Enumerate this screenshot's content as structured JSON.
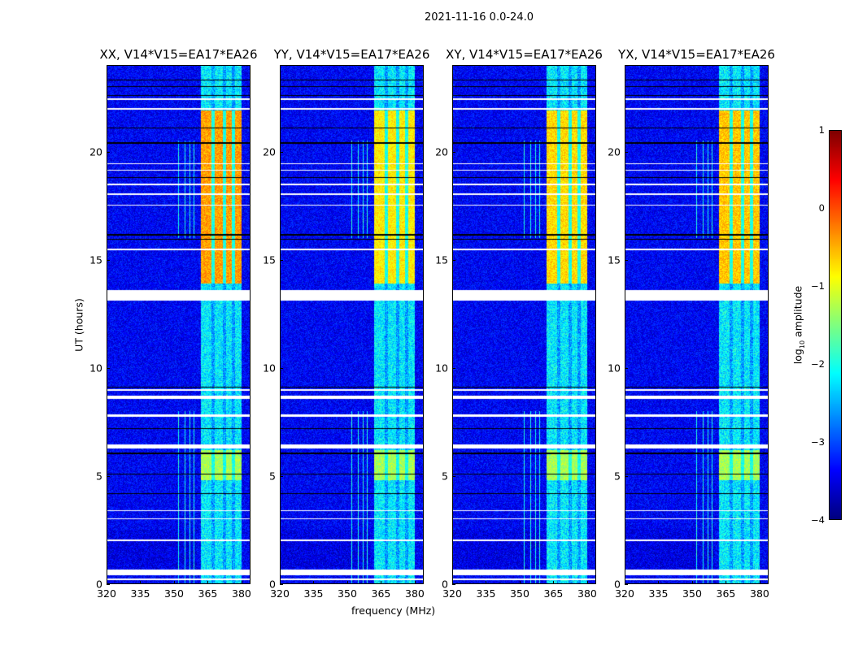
{
  "suptitle": "2021-11-16 0.0-24.0",
  "chart_data": {
    "type": "heatmap",
    "xlabel": "frequency (MHz)",
    "ylabel": "UT (hours)",
    "xlim": [
      320,
      384
    ],
    "ylim": [
      0,
      24
    ],
    "xticks": [
      "320",
      "335",
      "350",
      "365",
      "380"
    ],
    "xtick_values": [
      320,
      335,
      350,
      365,
      380
    ],
    "yticks": [
      "0",
      "5",
      "10",
      "15",
      "20"
    ],
    "ytick_values": [
      0,
      5,
      10,
      15,
      20
    ],
    "panels": [
      {
        "title": "XX, V14*V15=EA17*EA26",
        "bright_level": -0.4
      },
      {
        "title": "YY, V14*V15=EA17*EA26",
        "bright_level": -0.8
      },
      {
        "title": "XY, V14*V15=EA17*EA26",
        "bright_level": -0.7
      },
      {
        "title": "YX, V14*V15=EA17*EA26",
        "bright_level": -0.6
      }
    ],
    "background_level": -3.4,
    "rfi_band_mhz": [
      362,
      380
    ],
    "rfi_active_hours": [
      [
        13.9,
        21.9
      ],
      [
        4.8,
        6.2
      ]
    ],
    "rfi_quiet_level": -2.2,
    "flagged_hours": [
      [
        0.2,
        0.28
      ],
      [
        0.42,
        0.68
      ],
      [
        2.0,
        2.05
      ],
      [
        3.0,
        3.04
      ],
      [
        3.38,
        3.43
      ],
      [
        6.27,
        6.45
      ],
      [
        7.72,
        7.85
      ],
      [
        8.55,
        8.72
      ],
      [
        8.95,
        9.0
      ],
      [
        13.1,
        13.6
      ],
      [
        15.45,
        15.5
      ],
      [
        17.5,
        17.55
      ],
      [
        18.0,
        18.05
      ],
      [
        18.45,
        18.5
      ],
      [
        19.1,
        19.15
      ],
      [
        19.4,
        19.45
      ],
      [
        21.95,
        22.0
      ],
      [
        22.4,
        22.45
      ]
    ],
    "black_lines_hours": [
      4.2,
      5.1,
      6.05,
      7.2,
      9.1,
      15.95,
      16.15,
      18.8,
      20.4,
      21.1,
      22.6,
      23.0,
      23.3
    ],
    "colorbar": {
      "label": "log10 amplitude",
      "label_main": "log",
      "label_sub": "10",
      "label_rest": " amplitude",
      "range": [
        -4,
        1
      ],
      "ticks": [
        "1",
        "0",
        "−1",
        "−2",
        "−3",
        "−4"
      ],
      "tick_values": [
        1,
        0,
        -1,
        -2,
        -3,
        -4
      ]
    }
  }
}
